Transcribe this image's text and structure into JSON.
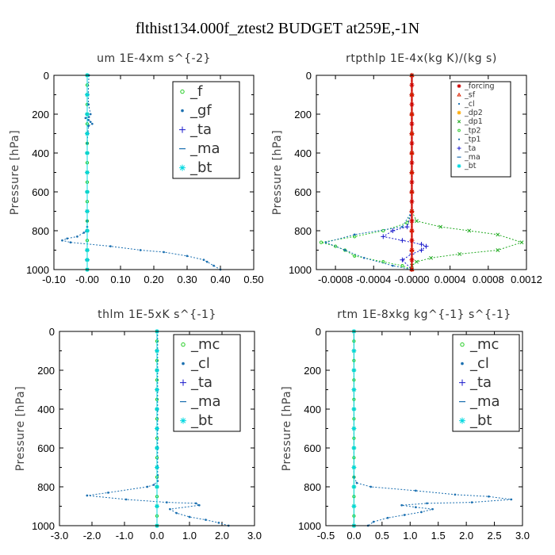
{
  "figure_title": "flthist134.000f_ztest2  BUDGET at259E,-1N",
  "chart_data": [
    {
      "type": "line",
      "title": "um   1E-4xm s^{-2}",
      "ylabel": "Pressure [hPa]",
      "xlim": [
        -0.1,
        0.5
      ],
      "ylim": [
        1000,
        0
      ],
      "xticks": [
        "-0.10",
        "-0.00",
        "0.10",
        "0.20",
        "0.30",
        "0.40",
        "0.50"
      ],
      "xtick_values": [
        -0.1,
        0.0,
        0.1,
        0.2,
        0.3,
        0.4,
        0.5
      ],
      "yticks": [
        "0",
        "200",
        "400",
        "600",
        "800",
        "1000"
      ],
      "ytick_values": [
        0,
        200,
        400,
        600,
        800,
        1000
      ],
      "legend": {
        "position": "top-right",
        "size": "large",
        "entries": [
          "_f",
          "_gf",
          "_ta",
          "_ma",
          "_bt"
        ]
      },
      "series": [
        {
          "name": "_f",
          "color": "#22cc22",
          "marker": "circle",
          "x": [
            0,
            0,
            0,
            0,
            0,
            0,
            0,
            0,
            0,
            0,
            0,
            0,
            0,
            0,
            0,
            0,
            0,
            0,
            0,
            0,
            0
          ],
          "y": [
            0,
            50,
            100,
            150,
            200,
            250,
            300,
            350,
            400,
            450,
            500,
            550,
            600,
            650,
            700,
            750,
            800,
            850,
            900,
            950,
            1000
          ]
        },
        {
          "name": "_gf",
          "color": "#1a6fb0",
          "marker": "dot",
          "x": [
            0.005,
            0.003,
            0.004,
            0.01,
            0.005,
            -0.005,
            0.004,
            0.01,
            0.015,
            0.004,
            0.002,
            0,
            0,
            0,
            0,
            0,
            0,
            0,
            0,
            -0.01,
            -0.03,
            -0.06,
            -0.075,
            -0.05,
            0.07,
            0.16,
            0.23,
            0.3,
            0.35,
            0.36,
            0.38,
            0.4
          ],
          "y": [
            0,
            100,
            150,
            200,
            215,
            220,
            230,
            240,
            250,
            260,
            300,
            350,
            400,
            500,
            600,
            700,
            750,
            780,
            800,
            810,
            830,
            840,
            850,
            860,
            880,
            900,
            910,
            930,
            950,
            960,
            980,
            1000
          ]
        },
        {
          "name": "_ta",
          "color": "#1a1acc",
          "marker": "plus",
          "x": [
            0,
            0,
            0,
            0,
            0,
            0,
            0,
            0,
            0,
            0,
            0,
            0
          ],
          "y": [
            0,
            100,
            200,
            300,
            400,
            500,
            600,
            700,
            800,
            900,
            950,
            1000
          ]
        },
        {
          "name": "_ma",
          "color": "#1a6fb0",
          "marker": "dash",
          "x": [
            0,
            0,
            0,
            0,
            0,
            0,
            0,
            0,
            0,
            0,
            0,
            0
          ],
          "y": [
            0,
            100,
            200,
            300,
            400,
            500,
            600,
            700,
            800,
            900,
            950,
            1000
          ]
        },
        {
          "name": "_bt",
          "color": "#00d8e0",
          "marker": "star",
          "x": [
            0,
            0,
            0,
            0,
            0,
            0,
            0,
            0,
            0,
            0,
            0,
            0
          ],
          "y": [
            0,
            100,
            200,
            300,
            400,
            500,
            600,
            700,
            800,
            900,
            950,
            1000
          ]
        }
      ]
    },
    {
      "type": "line",
      "title": "rtpthlp   1E-4x(kg K)/(kg s)",
      "ylabel": "Pressure [hPa]",
      "xlim": [
        -0.001,
        0.0012
      ],
      "ylim": [
        1000,
        0
      ],
      "xticks": [
        "-0.0008",
        "-0.0004",
        "-0.0000",
        "0.0004",
        "0.0008",
        "0.0012"
      ],
      "xtick_values": [
        -0.0008,
        -0.0004,
        0.0,
        0.0004,
        0.0008,
        0.0012
      ],
      "yticks": [
        "0",
        "200",
        "400",
        "600",
        "800",
        "1000"
      ],
      "ytick_values": [
        0,
        200,
        400,
        600,
        800,
        1000
      ],
      "legend": {
        "position": "top-right",
        "size": "small",
        "entries": [
          "_forcing",
          "_sf",
          "_cl",
          "_dp2",
          "_dp1",
          "_tp2",
          "_tp1",
          "_ta",
          "_ma",
          "_bt"
        ]
      },
      "series": [
        {
          "name": "_dp1",
          "color": "#22aa22",
          "marker": "cross",
          "x": [
            0,
            0,
            0,
            0,
            0,
            0,
            0,
            0,
            5e-05,
            0.0003,
            0.0006,
            0.0009,
            0.00115,
            0.0009,
            0.0005,
            0.0002,
            5e-05,
            0,
            0
          ],
          "y": [
            0,
            100,
            200,
            300,
            400,
            500,
            600,
            700,
            750,
            780,
            800,
            820,
            860,
            900,
            920,
            940,
            960,
            980,
            1000
          ]
        },
        {
          "name": "_tp2",
          "color": "#33cc33",
          "marker": "circle",
          "x": [
            0,
            0,
            0,
            0,
            0,
            0,
            0,
            0,
            -5e-05,
            -0.0003,
            -0.0006,
            -0.00095,
            -0.0008,
            -0.0007,
            -0.0006,
            -0.0003,
            -0.0001,
            0
          ],
          "y": [
            0,
            100,
            200,
            300,
            400,
            500,
            600,
            700,
            760,
            800,
            830,
            860,
            880,
            900,
            930,
            960,
            980,
            1000
          ]
        },
        {
          "name": "_tp1",
          "color": "#1a6fb0",
          "marker": "dot",
          "x": [
            0,
            0,
            0,
            0,
            0,
            0,
            0,
            0,
            -0.0001,
            -0.0006,
            -0.0009,
            -0.0007,
            -0.0005,
            -0.0002,
            0
          ],
          "y": [
            0,
            100,
            200,
            300,
            400,
            500,
            600,
            700,
            780,
            820,
            860,
            900,
            940,
            980,
            1000
          ]
        },
        {
          "name": "_ta",
          "color": "#1a1acc",
          "marker": "plus",
          "x": [
            0,
            0,
            0,
            0,
            0,
            0,
            0,
            0,
            -5e-05,
            -0.0002,
            -0.0003,
            -0.0001,
            0.0001,
            0.00015,
            0.0001,
            0,
            -0.0001,
            0
          ],
          "y": [
            0,
            100,
            200,
            300,
            400,
            500,
            600,
            700,
            780,
            800,
            830,
            850,
            870,
            880,
            900,
            920,
            950,
            1000
          ]
        },
        {
          "name": "_forcing",
          "color": "#cc0000",
          "marker": "star",
          "x": [
            0,
            0,
            0,
            0,
            0,
            0,
            0,
            0,
            0,
            0,
            0,
            0,
            0,
            0,
            0,
            0,
            0,
            0,
            0,
            0,
            0
          ],
          "y": [
            0,
            50,
            100,
            150,
            200,
            250,
            300,
            350,
            400,
            450,
            500,
            550,
            600,
            650,
            700,
            750,
            800,
            850,
            900,
            950,
            1000
          ]
        },
        {
          "name": "_sf",
          "color": "#dd2200",
          "marker": "triangle",
          "x": [
            0,
            0,
            0,
            0,
            0,
            0,
            0,
            0,
            0,
            0,
            0
          ],
          "y": [
            0,
            100,
            200,
            300,
            400,
            500,
            600,
            700,
            800,
            900,
            1000
          ]
        }
      ]
    },
    {
      "type": "line",
      "title": "thlm   1E-5xK s^{-1}",
      "ylabel": "Pressure [hPa]",
      "xlim": [
        -3.0,
        3.0
      ],
      "ylim": [
        1000,
        0
      ],
      "xticks": [
        "-3.0",
        "-2.0",
        "-1.0",
        "0.0",
        "1.0",
        "2.0",
        "3.0"
      ],
      "xtick_values": [
        -3.0,
        -2.0,
        -1.0,
        0.0,
        1.0,
        2.0,
        3.0
      ],
      "yticks": [
        "0",
        "200",
        "400",
        "600",
        "800",
        "1000"
      ],
      "ytick_values": [
        0,
        200,
        400,
        600,
        800,
        1000
      ],
      "legend": {
        "position": "top-right",
        "size": "large",
        "entries": [
          "_mc",
          "_cl",
          "_ta",
          "_ma",
          "_bt"
        ]
      },
      "series": [
        {
          "name": "_mc",
          "color": "#22cc22",
          "marker": "circle",
          "x": [
            0,
            0,
            0,
            0,
            0,
            0,
            0,
            0,
            0,
            0,
            0,
            0,
            0,
            0,
            0,
            0,
            0,
            0,
            0,
            0,
            0
          ],
          "y": [
            0,
            50,
            100,
            150,
            200,
            250,
            300,
            350,
            400,
            450,
            500,
            550,
            600,
            650,
            700,
            750,
            800,
            850,
            900,
            950,
            1000
          ]
        },
        {
          "name": "_cl",
          "color": "#1a6fb0",
          "marker": "dot",
          "x": [
            0.02,
            0.02,
            0.02,
            0.02,
            0.02,
            0.02,
            0.02,
            0.02,
            0.02,
            0.02,
            -0.1,
            -0.3,
            -1.5,
            -2.15,
            -0.95,
            0.3,
            1.2,
            1.3,
            0.4,
            0.6,
            1.0,
            1.5,
            1.9,
            2.2
          ],
          "y": [
            0,
            100,
            200,
            300,
            400,
            500,
            600,
            700,
            740,
            770,
            790,
            800,
            830,
            845,
            865,
            880,
            885,
            895,
            915,
            935,
            955,
            970,
            985,
            1000
          ]
        },
        {
          "name": "_bt",
          "color": "#00d8e0",
          "marker": "star",
          "x": [
            0,
            0,
            0,
            0,
            0,
            0,
            0,
            0,
            0,
            0,
            0
          ],
          "y": [
            0,
            100,
            200,
            300,
            400,
            500,
            600,
            700,
            800,
            900,
            1000
          ]
        }
      ]
    },
    {
      "type": "line",
      "title": "rtm   1E-8xkg kg^{-1} s^{-1}",
      "ylabel": "Pressure [hPa]",
      "xlim": [
        -0.5,
        3.0
      ],
      "ylim": [
        1000,
        0
      ],
      "xticks": [
        "-0.5",
        "0.0",
        "0.5",
        "1.0",
        "1.5",
        "2.0",
        "2.5",
        "3.0"
      ],
      "xtick_values": [
        -0.5,
        0.0,
        0.5,
        1.0,
        1.5,
        2.0,
        2.5,
        3.0
      ],
      "yticks": [
        "0",
        "200",
        "400",
        "600",
        "800",
        "1000"
      ],
      "ytick_values": [
        0,
        200,
        400,
        600,
        800,
        1000
      ],
      "legend": {
        "position": "top-right",
        "size": "large",
        "entries": [
          "_mc",
          "_cl",
          "_ta",
          "_ma",
          "_bt"
        ]
      },
      "series": [
        {
          "name": "_mc",
          "color": "#22cc22",
          "marker": "circle",
          "x": [
            0,
            0,
            0,
            0,
            0,
            0,
            0,
            0,
            0,
            0,
            0,
            0,
            0,
            0,
            0,
            0,
            0,
            0,
            0,
            0,
            0
          ],
          "y": [
            0,
            50,
            100,
            150,
            200,
            250,
            300,
            350,
            400,
            450,
            500,
            550,
            600,
            650,
            700,
            750,
            800,
            850,
            900,
            950,
            1000
          ]
        },
        {
          "name": "_cl",
          "color": "#1a6fb0",
          "marker": "dot",
          "x": [
            0,
            0,
            0,
            0,
            0,
            0,
            0,
            0,
            0,
            0.05,
            0.3,
            1.1,
            1.8,
            2.4,
            2.8,
            2.1,
            1.3,
            0.85,
            1.1,
            1.4,
            1.2,
            0.9,
            0.6,
            0.35,
            0.25
          ],
          "y": [
            0,
            100,
            200,
            300,
            400,
            500,
            600,
            700,
            750,
            780,
            800,
            820,
            840,
            850,
            865,
            880,
            885,
            895,
            905,
            915,
            930,
            945,
            960,
            980,
            1000
          ]
        },
        {
          "name": "_bt",
          "color": "#00d8e0",
          "marker": "star",
          "x": [
            0,
            0,
            0,
            0,
            0,
            0,
            0,
            0,
            0,
            0,
            0
          ],
          "y": [
            0,
            100,
            200,
            300,
            400,
            500,
            600,
            700,
            800,
            900,
            1000
          ]
        }
      ]
    }
  ]
}
